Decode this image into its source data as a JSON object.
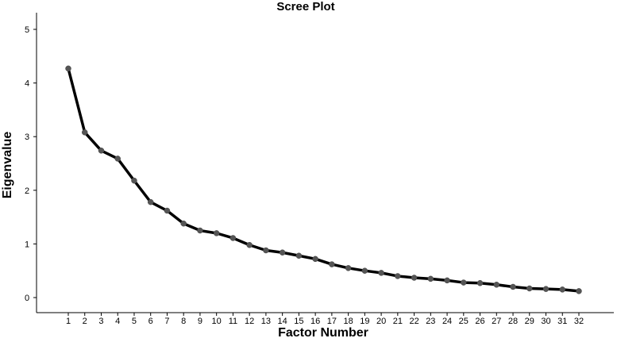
{
  "chart_data": {
    "type": "line",
    "title": "Scree Plot",
    "xlabel": "Factor Number",
    "ylabel": "Eigenvalue",
    "ylim": [
      0,
      5
    ],
    "yticks": [
      0,
      1,
      2,
      3,
      4,
      5
    ],
    "categories": [
      "1",
      "2",
      "3",
      "4",
      "5",
      "6",
      "7",
      "8",
      "9",
      "10",
      "11",
      "12",
      "13",
      "14",
      "15",
      "16",
      "17",
      "18",
      "19",
      "20",
      "21",
      "22",
      "23",
      "24",
      "25",
      "26",
      "27",
      "28",
      "29",
      "30",
      "31",
      "32"
    ],
    "series": [
      {
        "values": [
          4.27,
          3.08,
          2.74,
          2.59,
          2.18,
          1.78,
          1.62,
          1.38,
          1.25,
          1.2,
          1.11,
          0.98,
          0.88,
          0.84,
          0.78,
          0.72,
          0.62,
          0.55,
          0.5,
          0.46,
          0.4,
          0.37,
          0.35,
          0.32,
          0.28,
          0.27,
          0.24,
          0.2,
          0.17,
          0.16,
          0.15,
          0.12
        ]
      }
    ],
    "grid": false,
    "legend": "none"
  },
  "colors": {
    "line": "#000000",
    "point": "#555555"
  }
}
